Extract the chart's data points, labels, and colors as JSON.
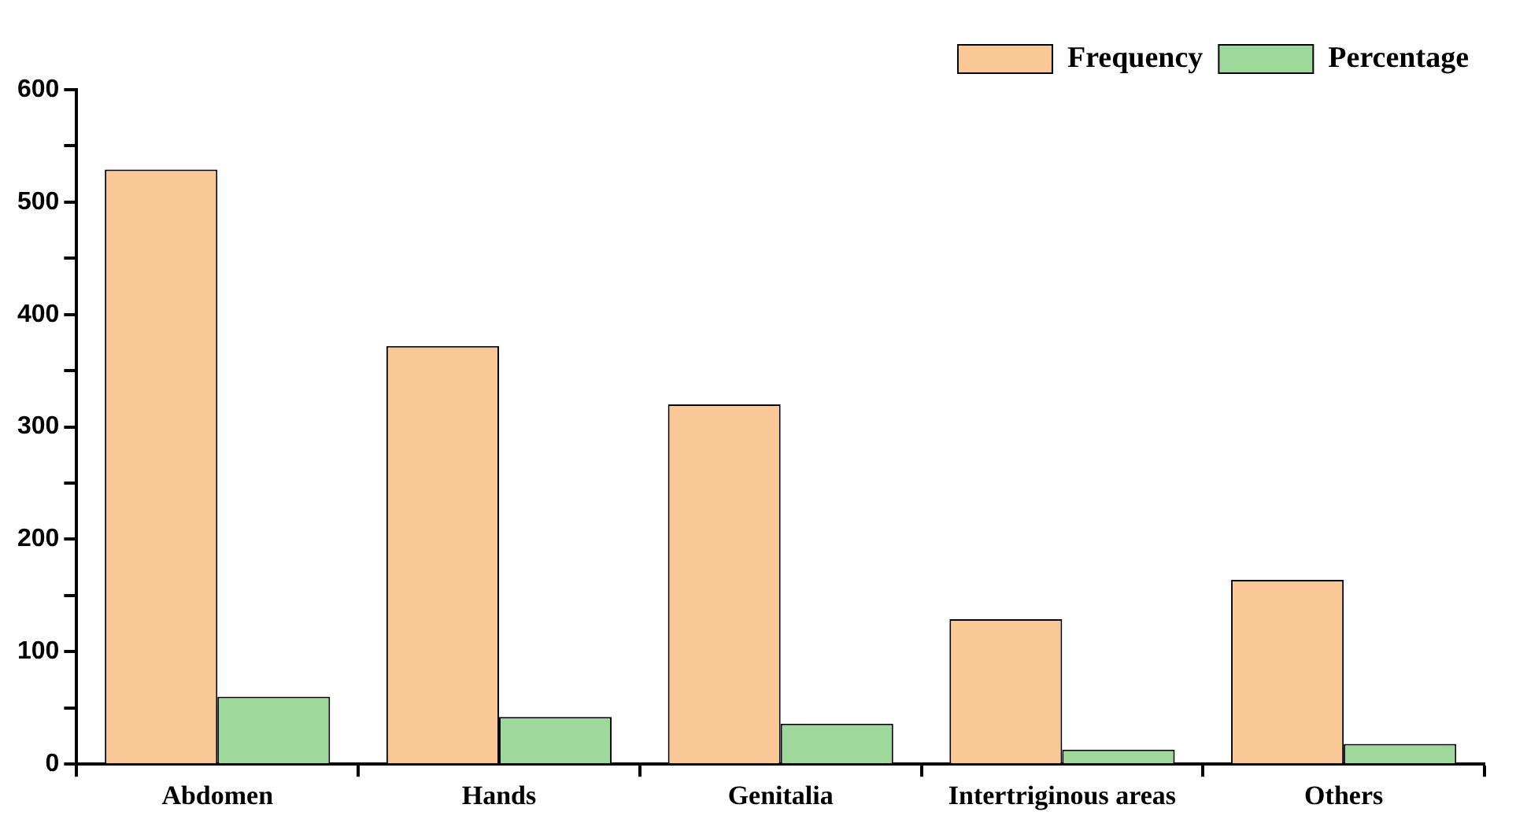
{
  "chart_data": {
    "type": "bar",
    "categories": [
      "Abdomen",
      "Hands",
      "Genitalia",
      "Intertriginous areas",
      "Others"
    ],
    "series": [
      {
        "name": "Frequency",
        "color": "#fac796",
        "values": [
          529,
          372,
          320,
          129,
          164
        ]
      },
      {
        "name": "Percentage",
        "color": "#9fd89b",
        "values": [
          60,
          42,
          36,
          13,
          18
        ]
      }
    ],
    "ylim": [
      0,
      600
    ],
    "yticks": [
      0,
      {
        "value": 50,
        "label": null
      },
      100,
      {
        "value": 150,
        "label": null
      },
      200,
      {
        "value": 250,
        "label": null
      },
      300,
      {
        "value": 350,
        "label": null
      },
      400,
      {
        "value": 450,
        "label": null
      },
      500,
      {
        "value": 550,
        "label": null
      },
      600
    ],
    "grid": false,
    "legend": "top right"
  }
}
